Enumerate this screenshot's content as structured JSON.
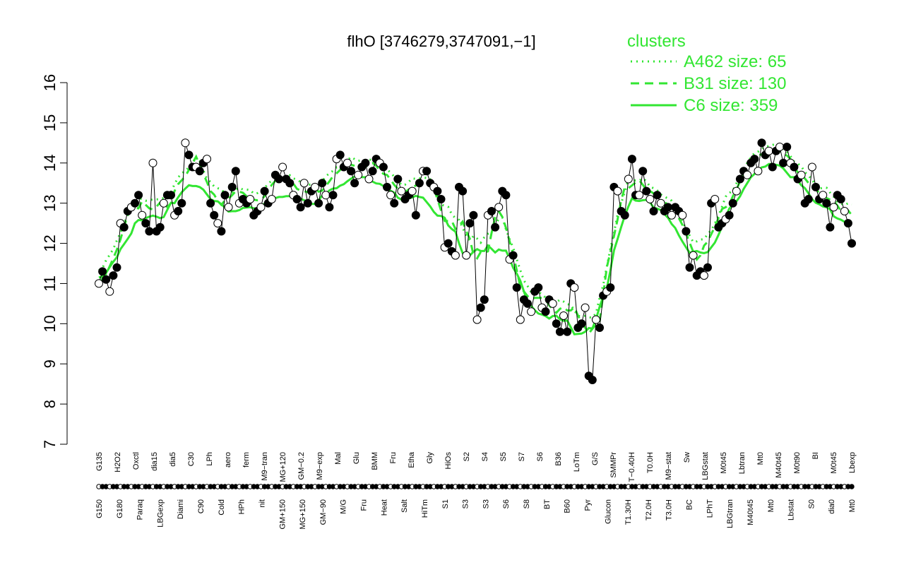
{
  "colors": {
    "cluster": "#32e632",
    "axis": "#000000",
    "open_point": "#ffffff",
    "filled_point": "#000000"
  },
  "chart_data": {
    "type": "line",
    "title": "flhO [3746279,3747091,−1]",
    "xlabel": "",
    "ylabel": "",
    "ylim": [
      7,
      16
    ],
    "yticks": [
      7,
      8,
      9,
      10,
      11,
      12,
      13,
      14,
      15,
      16
    ],
    "grid": false,
    "legend": {
      "title": "clusters",
      "placement": "top-right",
      "entries": [
        {
          "label": "A462 size: 65",
          "style": "dotted"
        },
        {
          "label": "B31 size: 130",
          "style": "dashed"
        },
        {
          "label": "C6 size: 359",
          "style": "solid"
        }
      ]
    },
    "categories_upper": [
      "G135",
      "H2O2",
      "Oxctl",
      "dia15",
      "dia5",
      "C30",
      "LPh",
      "aero",
      "ferm",
      "M9−tran",
      "MG+120",
      "GM−0.2",
      "M9−exp",
      "Mal",
      "Glu",
      "BMM",
      "Fru",
      "Etha",
      "Gly",
      "HiOs",
      "S2",
      "S4",
      "S5",
      "S7",
      "S6",
      "B36",
      "LoTm",
      "G/S",
      "SMMPr",
      "T−0.40H",
      "T0.0H",
      "M9−stat",
      "Sw",
      "LBGstat",
      "M0t45",
      "Lbtran",
      "Mt0",
      "M40t45",
      "M0t90",
      "BI",
      "M0t45",
      "Lbexp"
    ],
    "categories_lower": [
      "G150",
      "G180",
      "Paraq",
      "LBGexp",
      "Diami",
      "C90",
      "Cold",
      "HPh",
      "nit",
      "GM+150",
      "MG+150",
      "GM−90",
      "M/G",
      "Fru",
      "Heat",
      "Salt",
      "HiTm",
      "S1",
      "S3",
      "S3",
      "S6",
      "S8",
      "BT",
      "B60",
      "Pyr",
      "Glucon",
      "T1.30H",
      "T2.0H",
      "T3.0H",
      "BC",
      "LPhT",
      "LBGtran",
      "M40t45",
      "Mt0",
      "Lbstat",
      "S0",
      "dia0",
      "Mt0"
    ],
    "series": [
      {
        "values": [
          11.0,
          11.3,
          11.1,
          10.8,
          11.2,
          11.4,
          12.5,
          12.4,
          12.8,
          12.9,
          13.0,
          13.2,
          12.7,
          12.5,
          12.3,
          14.0,
          12.3,
          12.4,
          13.0,
          13.2,
          13.2,
          12.7,
          12.8,
          13.0,
          14.5,
          14.2,
          13.9,
          13.9,
          13.8,
          14.0,
          14.1,
          13.0,
          12.7,
          12.5,
          12.3,
          13.2,
          12.9,
          13.4,
          13.8,
          13.0,
          13.1,
          13.0,
          13.1,
          12.7,
          12.8,
          12.9,
          13.3,
          13.0,
          13.1,
          13.7,
          13.6,
          13.9,
          13.6,
          13.5,
          13.2,
          13.1,
          12.9,
          13.5,
          13.0,
          13.3,
          13.4,
          13.0,
          13.5,
          13.2,
          12.9,
          13.2,
          14.1,
          14.2,
          13.9,
          14.0,
          13.8,
          13.5,
          13.7,
          13.9,
          14.0,
          13.6,
          13.8,
          14.1,
          14.0,
          13.9,
          13.4,
          13.2,
          13.0,
          13.6,
          13.3,
          13.1,
          13.2,
          13.3,
          12.7,
          13.5,
          13.8,
          13.8,
          13.5,
          13.4,
          13.3,
          13.1,
          11.9,
          12.0,
          11.8,
          11.7,
          13.4,
          13.3,
          11.7,
          12.5,
          12.7,
          10.1,
          10.4,
          10.6,
          12.7,
          12.8,
          12.4,
          12.9,
          13.3,
          13.2,
          11.6,
          11.7,
          10.9,
          10.1,
          10.6,
          10.5,
          10.3,
          10.8,
          10.9,
          10.4,
          10.3,
          10.6,
          10.5,
          10.0,
          9.8,
          10.2,
          9.8,
          11.0,
          10.9,
          9.9,
          10.0,
          10.4,
          8.7,
          8.6,
          10.1,
          9.9,
          10.7,
          10.8,
          10.9,
          13.4,
          13.3,
          12.8,
          12.7,
          13.6,
          14.1,
          13.2,
          13.2,
          13.8,
          13.3,
          13.1,
          12.8,
          13.2,
          13.0,
          12.8,
          12.9,
          12.7,
          12.9,
          12.8,
          12.7,
          12.3,
          11.4,
          11.7,
          11.2,
          11.3,
          11.2,
          11.4,
          13.0,
          13.1,
          12.4,
          12.5,
          12.6,
          12.7,
          13.0,
          13.3,
          13.6,
          13.8,
          13.7,
          14.0,
          14.1,
          13.8,
          14.5,
          14.2,
          14.3,
          13.9,
          14.3,
          14.4,
          14.0,
          14.4,
          14.0,
          13.9,
          13.6,
          13.7,
          13.0,
          13.1,
          13.9,
          13.4,
          13.1,
          13.2,
          13.0,
          12.4,
          12.9,
          13.2,
          13.1,
          12.8,
          12.5,
          12.0
        ],
        "filled_every": 3
      }
    ]
  }
}
